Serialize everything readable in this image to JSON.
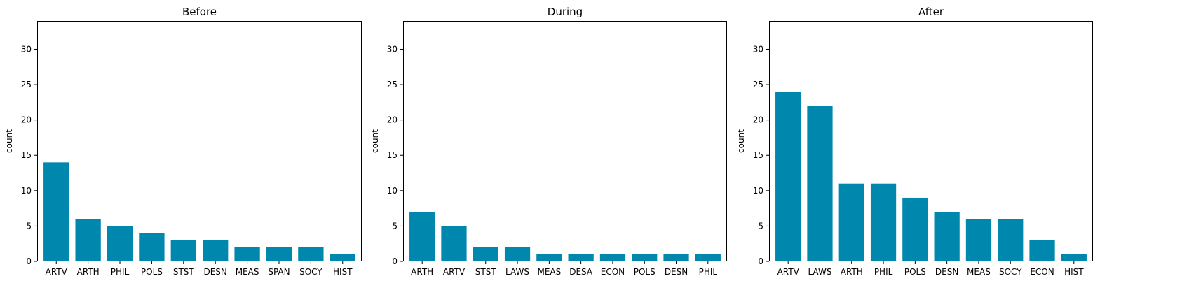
{
  "chart_data": [
    {
      "type": "bar",
      "title": "Before",
      "xlabel": "",
      "ylabel": "count",
      "ylim": [
        0,
        34
      ],
      "yticks": [
        0,
        5,
        10,
        15,
        20,
        25,
        30
      ],
      "categories": [
        "ARTV",
        "ARTH",
        "PHIL",
        "POLS",
        "STST",
        "DESN",
        "MEAS",
        "SPAN",
        "SOCY",
        "HIST"
      ],
      "values": [
        14,
        6,
        5,
        4,
        3,
        3,
        2,
        2,
        2,
        1
      ],
      "color": "#0087ae",
      "grid": false
    },
    {
      "type": "bar",
      "title": "During",
      "xlabel": "",
      "ylabel": "count",
      "ylim": [
        0,
        34
      ],
      "yticks": [
        0,
        5,
        10,
        15,
        20,
        25,
        30
      ],
      "categories": [
        "ARTH",
        "ARTV",
        "STST",
        "LAWS",
        "MEAS",
        "DESA",
        "ECON",
        "POLS",
        "DESN",
        "PHIL"
      ],
      "values": [
        7,
        5,
        2,
        2,
        1,
        1,
        1,
        1,
        1,
        1
      ],
      "color": "#0087ae",
      "grid": false
    },
    {
      "type": "bar",
      "title": "After",
      "xlabel": "",
      "ylabel": "count",
      "ylim": [
        0,
        34
      ],
      "yticks": [
        0,
        5,
        10,
        15,
        20,
        25,
        30
      ],
      "categories": [
        "ARTV",
        "LAWS",
        "ARTH",
        "PHIL",
        "POLS",
        "DESN",
        "MEAS",
        "SOCY",
        "ECON",
        "HIST"
      ],
      "values": [
        24,
        22,
        11,
        11,
        9,
        7,
        6,
        6,
        3,
        1
      ],
      "color": "#0087ae",
      "grid": false
    }
  ]
}
